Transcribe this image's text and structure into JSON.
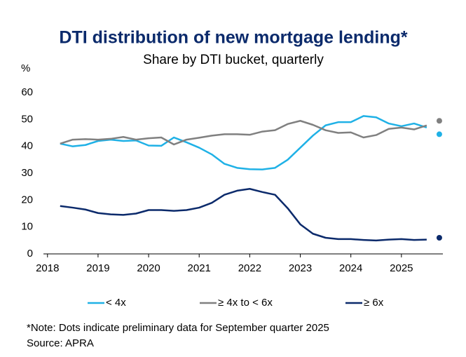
{
  "chart_data": {
    "type": "line",
    "title": "DTI distribution of new mortgage lending*",
    "subtitle": "Share by DTI bucket, quarterly",
    "y_label": "%",
    "note": "*Note: Dots indicate preliminary data for September quarter 2025",
    "source": "Source: APRA",
    "x": [
      2018.25,
      2018.5,
      2018.75,
      2019,
      2019.25,
      2019.5,
      2019.75,
      2020,
      2020.25,
      2020.5,
      2020.75,
      2021,
      2021.25,
      2021.5,
      2021.75,
      2022,
      2022.25,
      2022.5,
      2022.75,
      2023,
      2023.25,
      2023.5,
      2023.75,
      2024,
      2024.25,
      2024.5,
      2024.75,
      2025,
      2025.25,
      2025.5
    ],
    "preliminary_x": 2025.75,
    "series": [
      {
        "name": "< 4x",
        "color": "#1fb1e6",
        "values": [
          41,
          40,
          40.5,
          42,
          42.5,
          42,
          42.2,
          40.3,
          40.2,
          43.3,
          41.5,
          39.5,
          37,
          33.5,
          32,
          31.5,
          31.4,
          32,
          35,
          39.5,
          44,
          47.8,
          49,
          49,
          51.3,
          50.8,
          48.5,
          47.5,
          48.5,
          47
        ],
        "preliminary_value": 44.5
      },
      {
        "name": "≥ 4x to < 6x",
        "color": "#808080",
        "values": [
          41,
          42.5,
          42.7,
          42.5,
          42.8,
          43.5,
          42.5,
          43,
          43.3,
          40.7,
          42.5,
          43.2,
          44,
          44.5,
          44.5,
          44.3,
          45.5,
          46,
          48.3,
          49.5,
          48,
          46,
          45,
          45.2,
          43.3,
          44.2,
          46.5,
          47,
          46.3,
          47.8
        ],
        "preliminary_value": 49.5
      },
      {
        "name": "≥ 6x",
        "color": "#0b2a6b",
        "values": [
          17.8,
          17.2,
          16.5,
          15.2,
          14.7,
          14.5,
          15,
          16.3,
          16.3,
          16,
          16.3,
          17.2,
          19,
          22,
          23.5,
          24.2,
          23,
          22,
          17,
          11,
          7.5,
          6,
          5.5,
          5.5,
          5.2,
          5,
          5.3,
          5.5,
          5.2,
          5.3
        ],
        "preliminary_value": 6
      }
    ],
    "xlim": [
      2017.92,
      2025.82
    ],
    "xticks": [
      2018,
      2019,
      2020,
      2021,
      2022,
      2023,
      2024,
      2025
    ],
    "ylim": [
      0,
      60
    ],
    "yticks": [
      0,
      10,
      20,
      30,
      40,
      50,
      60
    ],
    "grid": false
  }
}
